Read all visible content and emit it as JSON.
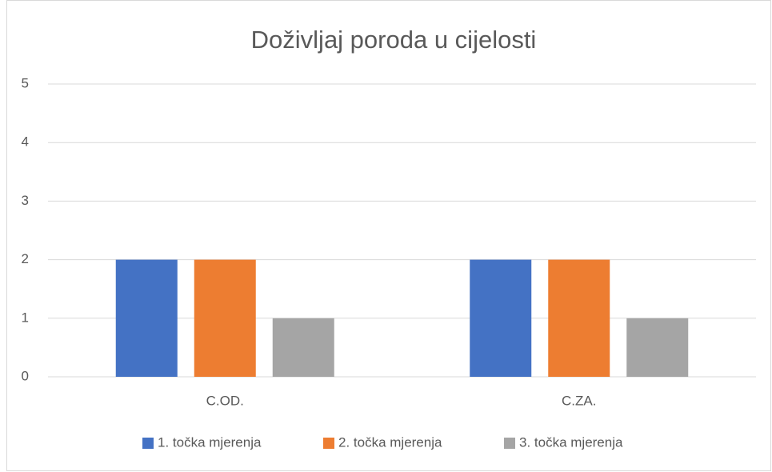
{
  "chart_data": {
    "type": "bar",
    "title": "Doživljaj poroda u cijelosti",
    "categories": [
      "C.OD.",
      "C.ZA."
    ],
    "series": [
      {
        "name": "1. točka mjerenja",
        "color": "#4472c4",
        "values": [
          2,
          2
        ]
      },
      {
        "name": "2. točka mjerenja",
        "color": "#ed7d31",
        "values": [
          2,
          2
        ]
      },
      {
        "name": "3. točka mjerenja",
        "color": "#a5a5a5",
        "values": [
          1,
          1
        ]
      }
    ],
    "ylim": [
      0,
      5
    ],
    "yticks": [
      0,
      1,
      2,
      3,
      4,
      5
    ],
    "grid": true,
    "legend": "bottom"
  }
}
